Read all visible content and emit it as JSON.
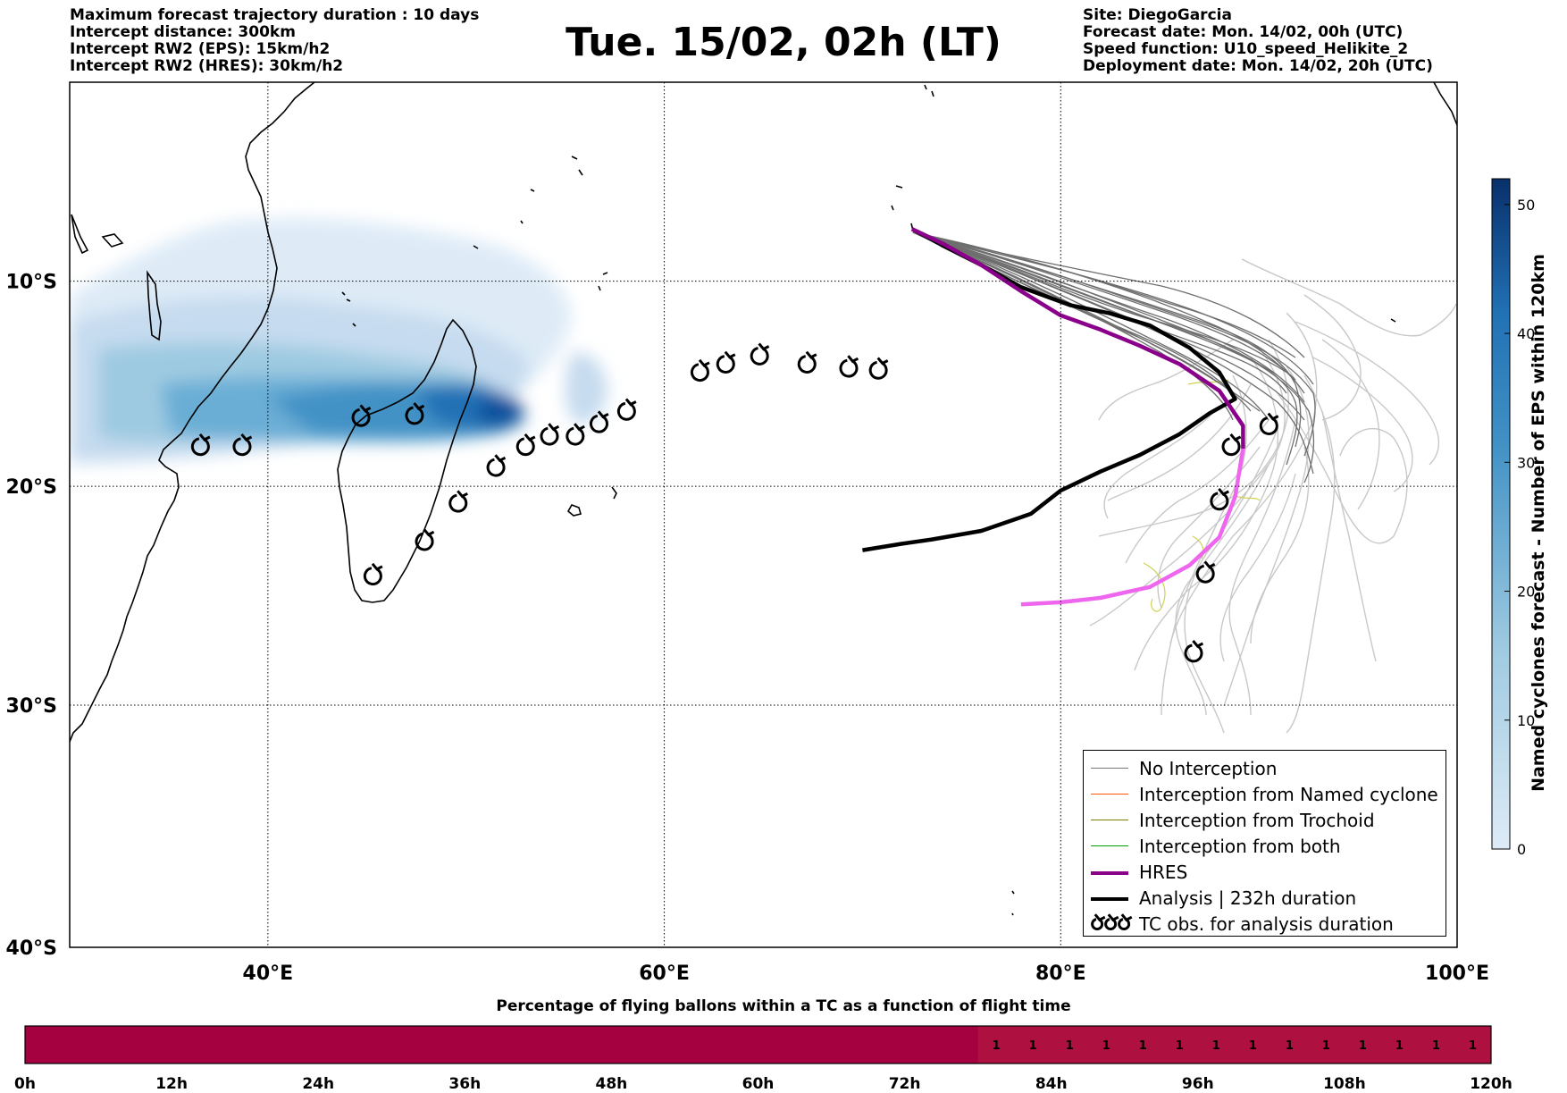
{
  "header_left": [
    "Maximum forecast trajectory duration : 10 days",
    "Intercept distance: 300km",
    "Intercept RW2 (EPS):  15km/h2",
    "Intercept RW2 (HRES): 30km/h2"
  ],
  "header_right": [
    "Site: DiegoGarcia",
    "Forecast date: Mon. 14/02, 00h (UTC)",
    "Speed function: U10_speed_Helikite_2",
    "Deployment date: Mon. 14/02, 20h (UTC)"
  ],
  "title": "Tue. 15/02, 02h (LT)",
  "map": {
    "lon_range": [
      30,
      100
    ],
    "lat_range": [
      -40,
      0
    ],
    "lon_ticks": [
      40,
      60,
      80,
      100
    ],
    "lon_tick_labels": [
      "40°E",
      "60°E",
      "80°E",
      "100°E"
    ],
    "lat_ticks": [
      -10,
      -20,
      -30,
      -40
    ],
    "lat_tick_labels": [
      "10°S",
      "20°S",
      "30°S",
      "40°S"
    ],
    "grid": true
  },
  "colorbar": {
    "label": "Named cyclones forecast - Number of EPS within 120km",
    "ticks": [
      0,
      10,
      20,
      30,
      40,
      50
    ],
    "range": [
      0,
      52
    ],
    "color_low": "#deebf7",
    "color_high": "#08306b"
  },
  "legend": [
    {
      "label": "No Interception",
      "color": "#777777",
      "style": "thin"
    },
    {
      "label": "Interception from Named cyclone",
      "color": "#ff5500",
      "style": "thin"
    },
    {
      "label": "Interception from Trochoid",
      "color": "#808000",
      "style": "thin"
    },
    {
      "label": "Interception from both",
      "color": "#00a000",
      "style": "thin"
    },
    {
      "label": "HRES",
      "color": "#8b008b",
      "style": "thick"
    },
    {
      "label": "Analysis | 232h duration",
      "color": "#000000",
      "style": "thick"
    },
    {
      "label": "TC obs. for analysis duration",
      "color": "#000000",
      "style": "symbol"
    }
  ],
  "colors": {
    "hres_early": "#8b008b",
    "hres_late": "#ee66ee",
    "analysis": "#000000",
    "eps_grey": "#6e6e6e",
    "eps_light": "#c8c8c8",
    "trochoid": "#d0d050"
  },
  "tracks": {
    "analysis": [
      [
        72.5,
        -7.4
      ],
      [
        74,
        -8.2
      ],
      [
        76,
        -9.2
      ],
      [
        78,
        -10.3
      ],
      [
        80.5,
        -11.2
      ],
      [
        82.5,
        -11.6
      ],
      [
        84.5,
        -12.2
      ],
      [
        86.5,
        -13.3
      ],
      [
        88,
        -14.5
      ],
      [
        88.8,
        -15.8
      ],
      [
        87.5,
        -16.5
      ],
      [
        86,
        -17.5
      ],
      [
        84,
        -18.5
      ],
      [
        82,
        -19.3
      ],
      [
        80,
        -20.2
      ],
      [
        78.5,
        -21.3
      ],
      [
        76,
        -22.1
      ],
      [
        73.5,
        -22.5
      ],
      [
        72,
        -22.7
      ],
      [
        70,
        -23
      ]
    ],
    "hres": [
      [
        72.5,
        -7.4
      ],
      [
        74,
        -8.1
      ],
      [
        76,
        -9.2
      ],
      [
        78,
        -10.5
      ],
      [
        80,
        -11.7
      ],
      [
        82,
        -12.4
      ],
      [
        84,
        -13.2
      ],
      [
        86,
        -14.1
      ],
      [
        88,
        -15.4
      ],
      [
        89.2,
        -17.1
      ],
      [
        89.2,
        -18.2
      ],
      [
        88.8,
        -20.5
      ],
      [
        88,
        -22.4
      ],
      [
        86.5,
        -23.7
      ],
      [
        84.5,
        -24.7
      ],
      [
        82,
        -25.2
      ],
      [
        80,
        -25.4
      ],
      [
        78,
        -25.5
      ]
    ],
    "hres_split_index": 10,
    "tc_obs": [
      [
        36.6,
        -18.1
      ],
      [
        38.7,
        -18.1
      ],
      [
        44.7,
        -16.7
      ],
      [
        47.4,
        -16.6
      ],
      [
        51.5,
        -19.1
      ],
      [
        53,
        -18.1
      ],
      [
        54.2,
        -17.6
      ],
      [
        55.5,
        -17.6
      ],
      [
        56.7,
        -17
      ],
      [
        58.1,
        -16.4
      ],
      [
        61.8,
        -14.5
      ],
      [
        63.1,
        -14.1
      ],
      [
        64.8,
        -13.7
      ],
      [
        67.2,
        -14.1
      ],
      [
        69.3,
        -14.3
      ],
      [
        70.8,
        -14.4
      ],
      [
        49.6,
        -20.8
      ],
      [
        47.9,
        -22.6
      ],
      [
        45.3,
        -24.2
      ],
      [
        88,
        -20.7
      ],
      [
        87.3,
        -24.1
      ],
      [
        86.7,
        -27.7
      ],
      [
        88.6,
        -18.1
      ],
      [
        90.5,
        -17.1
      ]
    ]
  },
  "bar": {
    "title": "Percentage of flying ballons within a TC as a function of flight time",
    "tick_labels": [
      "0h",
      "12h",
      "24h",
      "36h",
      "48h",
      "60h",
      "72h",
      "84h",
      "96h",
      "108h",
      "120h"
    ],
    "hours": [
      78,
      81,
      84,
      87,
      90,
      93,
      96,
      99,
      102,
      105,
      108,
      111,
      114,
      117
    ],
    "values": [
      1,
      1,
      1,
      1,
      1,
      1,
      1,
      1,
      1,
      1,
      1,
      1,
      1,
      1
    ],
    "color_full": "#a50040",
    "color_partial": "#ae1040"
  }
}
